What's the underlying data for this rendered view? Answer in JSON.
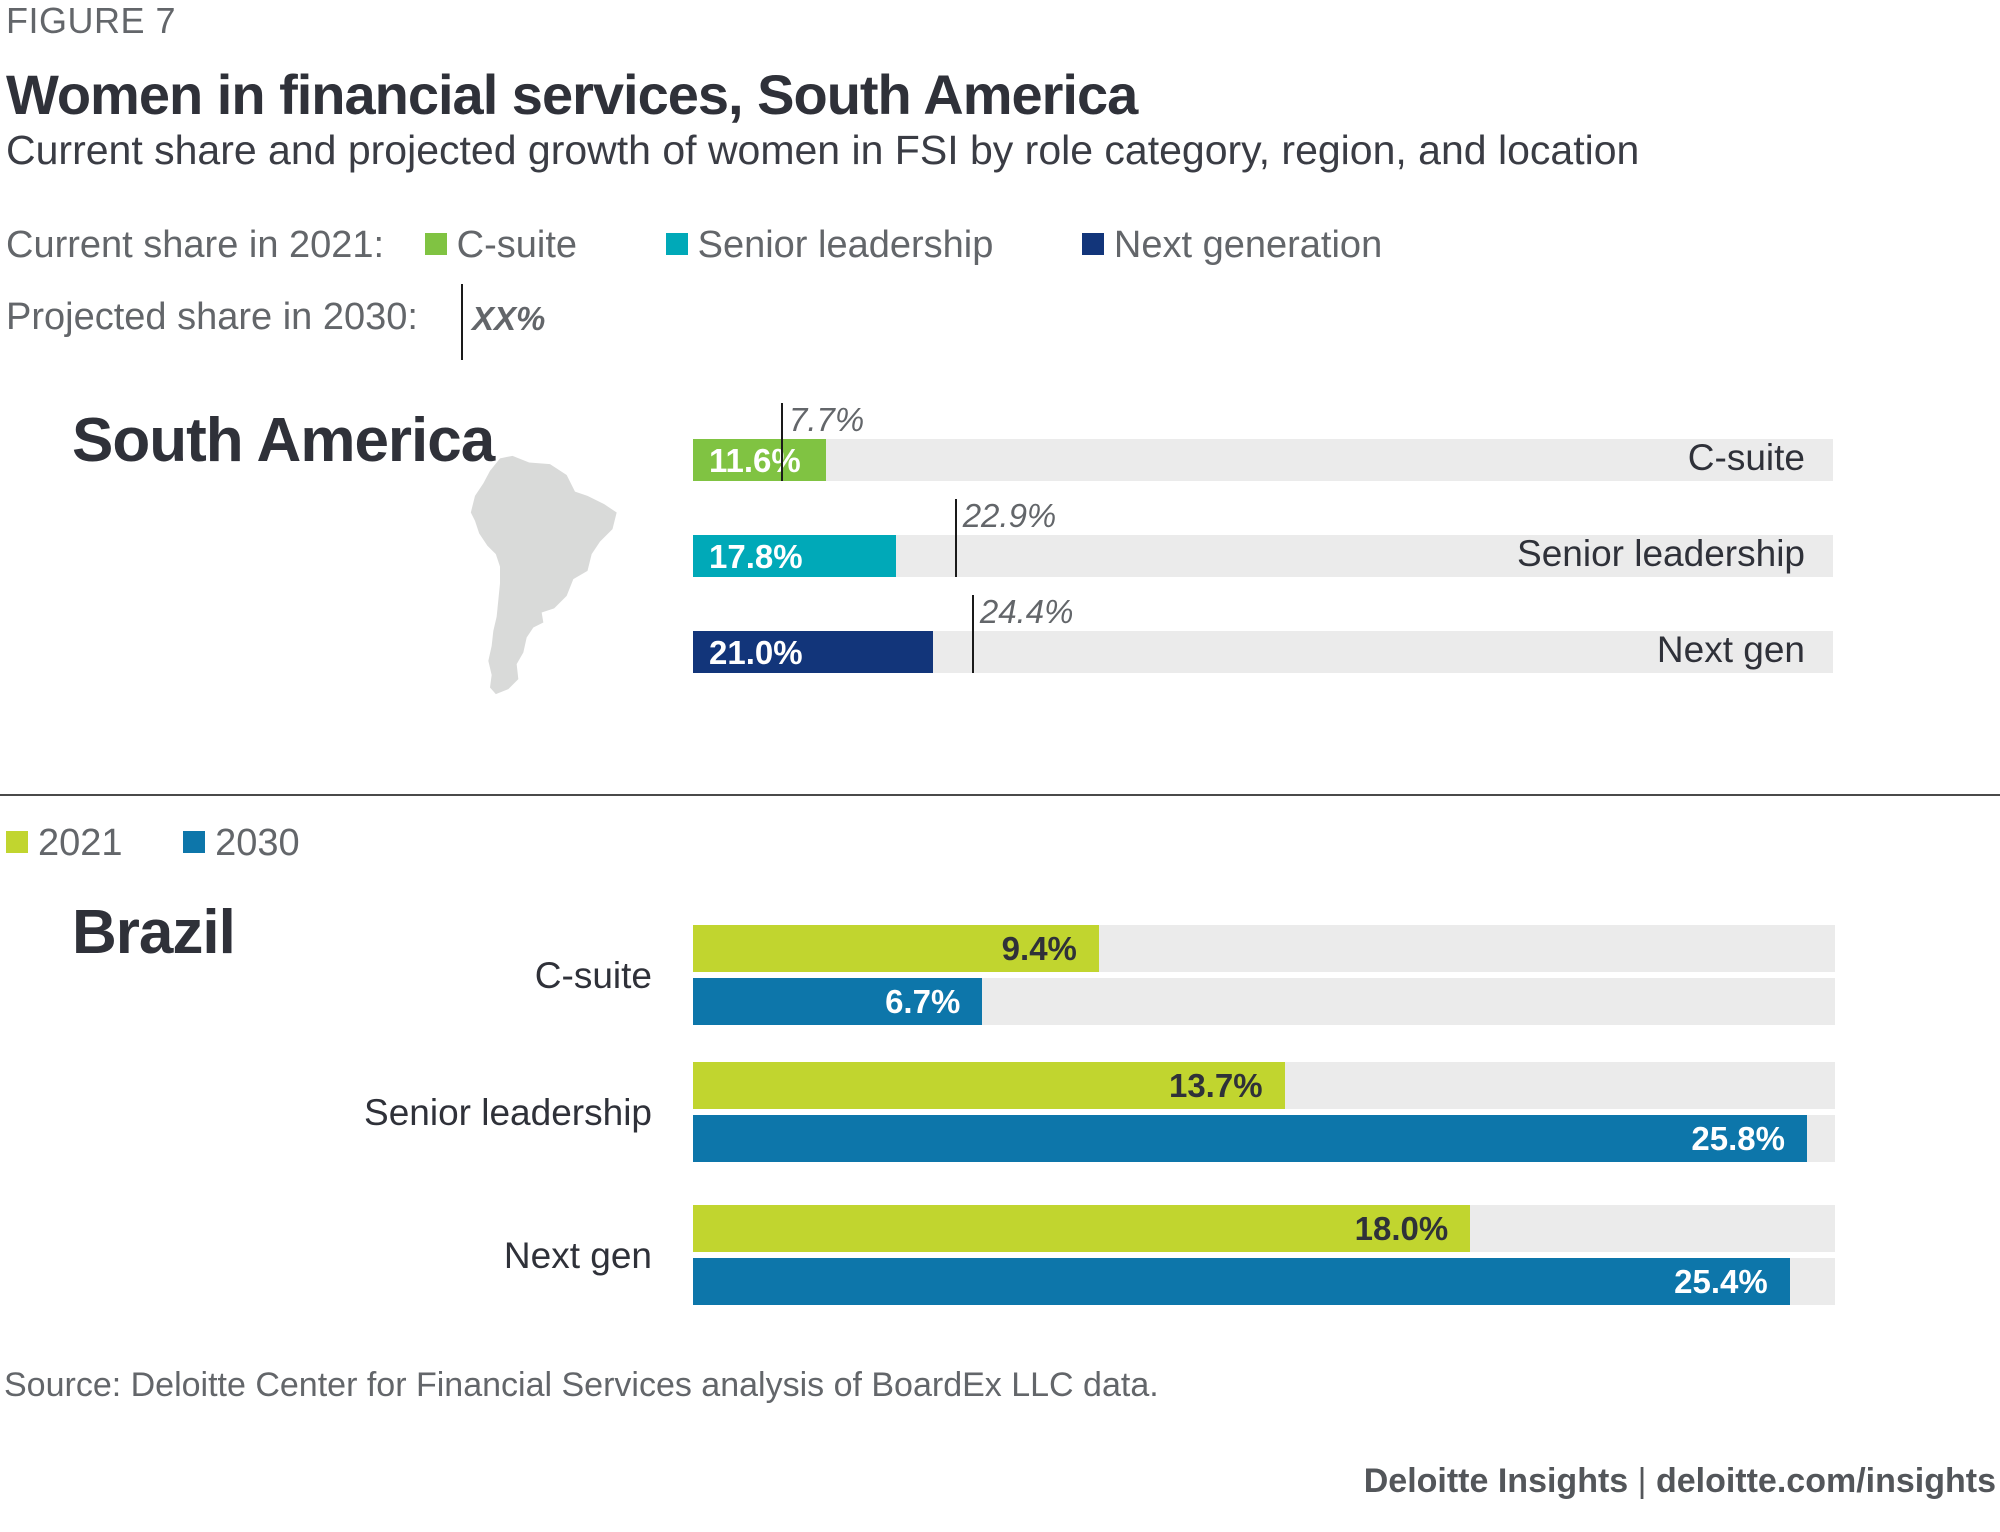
{
  "figure_label": "FIGURE 7",
  "title": "Women in financial services, South America",
  "subtitle": "Current share and projected growth of women in FSI by role category, region, and location",
  "legend_top": {
    "current_label": "Current share in 2021:",
    "items": [
      {
        "label": "C-suite",
        "color": "#80c342"
      },
      {
        "label": "Senior leadership",
        "color": "#00a9b8"
      },
      {
        "label": "Next generation",
        "color": "#12357a"
      }
    ],
    "projected_label": "Projected share in 2030:",
    "projected_sample": "XX%"
  },
  "legend_bottom": {
    "items": [
      {
        "label": "2021",
        "color": "#c1d52f"
      },
      {
        "label": "2030",
        "color": "#0d76aa"
      }
    ]
  },
  "source": "Source: Deloitte Center for Financial Services analysis of BoardEx LLC data.",
  "credit": {
    "brand": "Deloitte Insights",
    "separator": "|",
    "url": "deloitte.com/insights"
  },
  "chart_data": [
    {
      "type": "bar",
      "orientation": "horizontal",
      "title": "South America",
      "categories": [
        "C-suite",
        "Senior leadership",
        "Next gen"
      ],
      "series": [
        {
          "name": "Current share in 2021",
          "values": [
            11.6,
            17.8,
            21.0
          ],
          "labels": [
            "11.6%",
            "17.8%",
            "21.0%"
          ],
          "colors": [
            "#80c342",
            "#00a9b8",
            "#12357a"
          ]
        },
        {
          "name": "Projected share in 2030",
          "values": [
            7.7,
            22.9,
            24.4
          ],
          "labels": [
            "7.7%",
            "22.9%",
            "24.4%"
          ],
          "marker": "tick"
        }
      ],
      "xlim": [
        0,
        100
      ],
      "unit": "%"
    },
    {
      "type": "bar",
      "orientation": "horizontal",
      "title": "Brazil",
      "categories": [
        "C-suite",
        "Senior leadership",
        "Next gen"
      ],
      "series": [
        {
          "name": "2021",
          "values": [
            9.4,
            13.7,
            18.0
          ],
          "labels": [
            "9.4%",
            "13.7%",
            "18.0%"
          ],
          "color": "#c1d52f"
        },
        {
          "name": "2030",
          "values": [
            6.7,
            25.8,
            25.4
          ],
          "labels": [
            "6.7%",
            "25.8%",
            "25.4%"
          ],
          "color": "#0d76aa"
        }
      ],
      "xlim": [
        0,
        26.5
      ],
      "unit": "%"
    }
  ]
}
